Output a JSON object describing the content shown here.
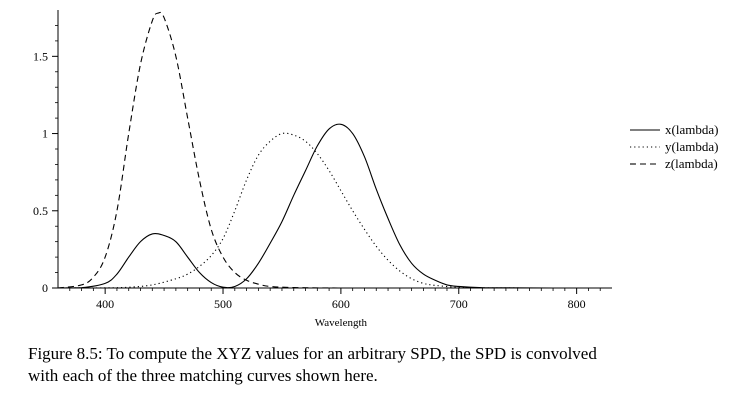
{
  "chart_data": {
    "type": "line",
    "xlabel": "Wavelength",
    "ylabel": "",
    "xlim": [
      360,
      830
    ],
    "ylim": [
      0,
      1.8
    ],
    "x_ticks": [
      400,
      500,
      600,
      700,
      800
    ],
    "y_ticks": [
      0,
      0.5,
      1,
      1.5
    ],
    "y_tick_labels": [
      "0",
      "0.5",
      "1",
      "1.5"
    ],
    "grid": false,
    "legend_position": "right",
    "series": [
      {
        "name": "x(lambda)",
        "style": "solid",
        "x": [
          360,
          380,
          400,
          410,
          420,
          430,
          440,
          450,
          460,
          470,
          480,
          490,
          500,
          510,
          520,
          530,
          540,
          550,
          560,
          570,
          580,
          590,
          600,
          610,
          620,
          630,
          640,
          650,
          660,
          670,
          680,
          690,
          700,
          720,
          740,
          780,
          830
        ],
        "y": [
          0.0,
          0.002,
          0.03,
          0.09,
          0.2,
          0.3,
          0.35,
          0.34,
          0.3,
          0.2,
          0.1,
          0.035,
          0.005,
          0.01,
          0.06,
          0.16,
          0.29,
          0.43,
          0.6,
          0.76,
          0.92,
          1.03,
          1.06,
          1.0,
          0.85,
          0.64,
          0.45,
          0.28,
          0.16,
          0.09,
          0.05,
          0.02,
          0.01,
          0.002,
          0.001,
          0.0,
          0.0
        ]
      },
      {
        "name": "y(lambda)",
        "style": "dotted",
        "x": [
          360,
          400,
          420,
          440,
          460,
          470,
          480,
          490,
          500,
          510,
          520,
          530,
          540,
          550,
          560,
          570,
          580,
          590,
          600,
          610,
          620,
          630,
          640,
          650,
          660,
          670,
          680,
          700,
          720,
          760,
          830
        ],
        "y": [
          0.0,
          0.001,
          0.005,
          0.02,
          0.06,
          0.09,
          0.14,
          0.21,
          0.32,
          0.5,
          0.7,
          0.86,
          0.95,
          1.0,
          0.99,
          0.95,
          0.87,
          0.76,
          0.63,
          0.5,
          0.38,
          0.27,
          0.18,
          0.11,
          0.06,
          0.03,
          0.017,
          0.004,
          0.001,
          0.0,
          0.0
        ]
      },
      {
        "name": "z(lambda)",
        "style": "dashed",
        "x": [
          360,
          380,
          390,
          400,
          410,
          420,
          430,
          440,
          445,
          450,
          460,
          470,
          480,
          490,
          500,
          510,
          520,
          530,
          540,
          560,
          600,
          700,
          830
        ],
        "y": [
          0.0,
          0.02,
          0.07,
          0.2,
          0.5,
          1.0,
          1.45,
          1.73,
          1.78,
          1.75,
          1.5,
          1.1,
          0.7,
          0.38,
          0.2,
          0.1,
          0.05,
          0.025,
          0.01,
          0.003,
          0.0,
          0.0,
          0.0
        ]
      }
    ]
  },
  "caption": {
    "line1": "Figure 8.5: To compute the XYZ values for an arbitrary SPD, the SPD is convolved",
    "line2": "with each of the three matching curves shown here."
  }
}
